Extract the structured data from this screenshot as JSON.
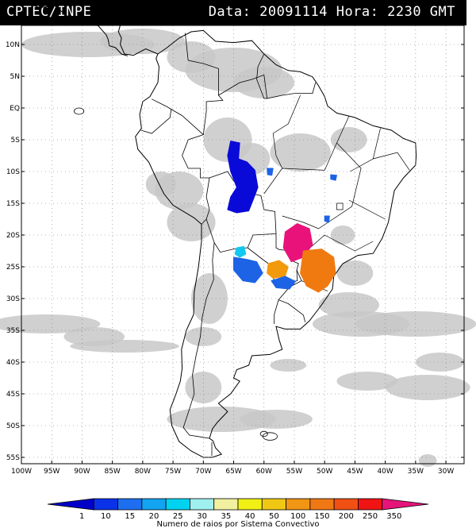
{
  "header": {
    "left": "CPTEC/INPE",
    "right": "Data: 20091114 Hora: 2230 GMT"
  },
  "map": {
    "lon_range": [
      -100,
      -27
    ],
    "lat_range": [
      -56,
      13
    ],
    "lat_labels": [
      "10N",
      "5N",
      "EQ",
      "5S",
      "10S",
      "15S",
      "20S",
      "25S",
      "30S",
      "35S",
      "40S",
      "45S",
      "50S",
      "55S"
    ],
    "lat_values": [
      10,
      5,
      0,
      -5,
      -10,
      -15,
      -20,
      -25,
      -30,
      -35,
      -40,
      -45,
      -50,
      -55
    ],
    "lon_labels": [
      "100W",
      "95W",
      "90W",
      "85W",
      "80W",
      "75W",
      "70W",
      "65W",
      "60W",
      "55W",
      "50W",
      "45W",
      "40W",
      "35W",
      "30W"
    ],
    "lon_values": [
      -100,
      -95,
      -90,
      -85,
      -80,
      -75,
      -70,
      -65,
      -60,
      -55,
      -50,
      -45,
      -40,
      -35,
      -30
    ],
    "grid": true,
    "cloud_color": "#c8c8c8",
    "storm_systems": [
      {
        "name": "amazon-west",
        "lon": -63.5,
        "lat": -11,
        "class": "1",
        "color": "#0a0ad8"
      },
      {
        "name": "bolivia-south",
        "lon": -62.5,
        "lat": -25.5,
        "class": "10",
        "color": "#1d63e6"
      },
      {
        "name": "chaco-small",
        "lon": -64,
        "lat": -23,
        "class": "20",
        "color": "#10c8f0"
      },
      {
        "name": "sao-paulo",
        "lon": -54.5,
        "lat": -21.5,
        "class": "350",
        "color": "#e8127a"
      },
      {
        "name": "parana-west",
        "lon": -57.5,
        "lat": -25.5,
        "class": "100",
        "color": "#f29a0c"
      },
      {
        "name": "parana-east",
        "lon": -51,
        "lat": -26,
        "class": "200",
        "color": "#f07a10"
      },
      {
        "name": "misiones",
        "lon": -57,
        "lat": -27.5,
        "class": "10",
        "color": "#1d63e6"
      },
      {
        "name": "mato-grosso",
        "lon": -59,
        "lat": -10,
        "class": "10",
        "color": "#1d63e6"
      },
      {
        "name": "bahia",
        "lon": -48.5,
        "lat": -11,
        "class": "10",
        "color": "#1d63e6"
      },
      {
        "name": "goias",
        "lon": -49.5,
        "lat": -17.5,
        "class": "10",
        "color": "#1d63e6"
      }
    ]
  },
  "legend": {
    "labels": [
      "1",
      "10",
      "15",
      "20",
      "25",
      "30",
      "35",
      "40",
      "50",
      "100",
      "150",
      "200",
      "250",
      "350"
    ],
    "colors": [
      "#0000c8",
      "#0a32e8",
      "#1e6ef0",
      "#12a4f0",
      "#00d2f0",
      "#a0f0f0",
      "#f0f0a0",
      "#f0f014",
      "#f0c814",
      "#f09614",
      "#f07814",
      "#f05014",
      "#f01414",
      "#e6147a"
    ],
    "title": "Numero de raios por Sistema Convectivo"
  }
}
